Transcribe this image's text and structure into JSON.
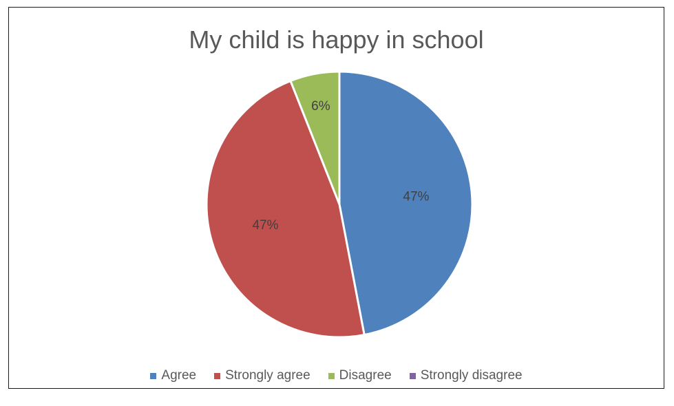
{
  "chart_data": {
    "type": "pie",
    "title": "My child is happy in school",
    "categories": [
      "Agree",
      "Strongly agree",
      "Disagree",
      "Strongly disagree"
    ],
    "values": [
      47,
      47,
      6,
      0
    ],
    "data_labels": [
      "47%",
      "47%",
      "6%",
      ""
    ],
    "colors": [
      "#4F81BD",
      "#C0504D",
      "#9BBB59",
      "#8064A2"
    ],
    "legend_position": "bottom",
    "start_angle_deg": 0,
    "direction": "clockwise"
  }
}
